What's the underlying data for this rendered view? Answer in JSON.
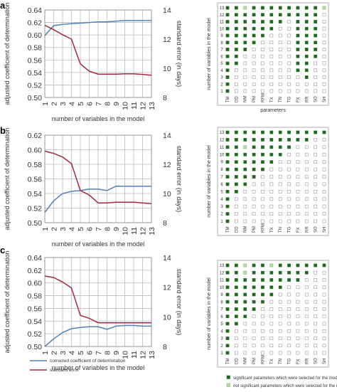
{
  "chart_data": [
    {
      "type": "line",
      "panel": "a",
      "x": [
        1,
        2,
        3,
        4,
        5,
        6,
        7,
        8,
        9,
        10,
        11,
        12,
        13
      ],
      "xlabel": "number of variables in the model",
      "ylabel": "adjusted coefficient of determination",
      "y2label": "standard error (in days)",
      "ylim": [
        0.5,
        0.64
      ],
      "y2lim": [
        8,
        14
      ],
      "series": [
        {
          "name": "corrected coefficient of determination",
          "axis": "left",
          "color": "#4f81bd",
          "values": [
            0.599,
            0.615,
            0.617,
            0.618,
            0.619,
            0.62,
            0.621,
            0.621,
            0.622,
            0.623,
            0.623,
            0.623,
            0.623
          ]
        },
        {
          "name": "standard error",
          "axis": "right",
          "color": "#a4283f",
          "values": [
            12.95,
            12.65,
            12.3,
            12.0,
            10.3,
            9.8,
            9.6,
            9.6,
            9.6,
            9.62,
            9.62,
            9.58,
            9.52
          ]
        }
      ],
      "grid": true
    },
    {
      "type": "line",
      "panel": "b",
      "x": [
        1,
        2,
        3,
        4,
        5,
        6,
        7,
        8,
        9,
        10,
        11,
        12,
        13
      ],
      "xlabel": "number of variables in the model",
      "ylabel": "adjusted coefficient of determination",
      "y2label": "standard error (in days)",
      "ylim": [
        0.5,
        0.62
      ],
      "y2lim": [
        8,
        14
      ],
      "series": [
        {
          "name": "corrected coefficient of determination",
          "axis": "left",
          "color": "#4f81bd",
          "values": [
            0.514,
            0.53,
            0.54,
            0.543,
            0.544,
            0.546,
            0.546,
            0.544,
            0.55,
            0.55,
            0.55,
            0.55,
            0.55
          ]
        },
        {
          "name": "standard error",
          "axis": "right",
          "color": "#a4283f",
          "values": [
            12.9,
            12.75,
            12.5,
            12.05,
            10.2,
            9.9,
            9.35,
            9.35,
            9.4,
            9.4,
            9.4,
            9.35,
            9.3
          ]
        }
      ],
      "grid": true
    },
    {
      "type": "line",
      "panel": "c",
      "x": [
        1,
        2,
        3,
        4,
        5,
        6,
        7,
        8,
        9,
        10,
        11,
        12,
        13
      ],
      "xlabel": "number of variables in the model",
      "ylabel": "adjusted coefficient of determination",
      "y2label": "standard error (in days)",
      "ylim": [
        0.5,
        0.64
      ],
      "y2lim": [
        8,
        14
      ],
      "series": [
        {
          "name": "corrected coefficient of determination",
          "axis": "left",
          "color": "#4f81bd",
          "values": [
            0.5,
            0.512,
            0.522,
            0.528,
            0.53,
            0.531,
            0.531,
            0.527,
            0.532,
            0.533,
            0.533,
            0.532,
            0.532
          ]
        },
        {
          "name": "standard error",
          "axis": "right",
          "color": "#a4283f",
          "values": [
            12.75,
            12.65,
            12.35,
            11.95,
            10.1,
            9.9,
            9.6,
            9.6,
            9.6,
            9.6,
            9.6,
            9.6,
            9.6
          ]
        }
      ],
      "grid": true
    },
    {
      "type": "heatmap",
      "panel": "a-grid",
      "xlabel": "parameters",
      "ylabel": "number of variables in the model",
      "x": [
        "TM",
        "DD",
        "NM",
        "PM",
        "RFM",
        "TX",
        "TN",
        "TG",
        "FX",
        "RR",
        "SO",
        "SH"
      ],
      "y": [
        1,
        2,
        3,
        4,
        5,
        6,
        7,
        8,
        9,
        10,
        11,
        12,
        13
      ],
      "legend": {
        "1": "significant parameters which were selected for the model",
        "2": "not significant parameters which were selected for the model"
      },
      "rows": [
        [
          1,
          0,
          0,
          0,
          0,
          0,
          0,
          0,
          0,
          0,
          0,
          0
        ],
        [
          1,
          0,
          0,
          0,
          0,
          0,
          0,
          0,
          0,
          0,
          0,
          0
        ],
        [
          1,
          0,
          0,
          0,
          0,
          0,
          0,
          0,
          0,
          1,
          0,
          0
        ],
        [
          1,
          0,
          0,
          0,
          0,
          0,
          0,
          0,
          1,
          1,
          0,
          0
        ],
        [
          1,
          1,
          0,
          0,
          0,
          0,
          0,
          0,
          1,
          1,
          0,
          0
        ],
        [
          1,
          1,
          0,
          0,
          0,
          0,
          0,
          0,
          1,
          1,
          1,
          0
        ],
        [
          1,
          1,
          1,
          0,
          0,
          0,
          0,
          0,
          1,
          1,
          1,
          0
        ],
        [
          1,
          1,
          1,
          1,
          0,
          0,
          0,
          0,
          1,
          1,
          1,
          0
        ],
        [
          1,
          1,
          1,
          1,
          1,
          0,
          0,
          0,
          1,
          1,
          1,
          0
        ],
        [
          1,
          1,
          1,
          1,
          1,
          1,
          0,
          0,
          1,
          1,
          1,
          0
        ],
        [
          1,
          1,
          1,
          1,
          1,
          1,
          1,
          0,
          1,
          1,
          1,
          0
        ],
        [
          1,
          1,
          1,
          1,
          1,
          1,
          1,
          1,
          1,
          1,
          1,
          0
        ],
        [
          1,
          1,
          2,
          1,
          1,
          1,
          1,
          1,
          1,
          1,
          1,
          2
        ]
      ]
    },
    {
      "type": "heatmap",
      "panel": "b-grid",
      "ylabel": "number of variables in the model",
      "x": [
        "TM",
        "DD",
        "NM",
        "PM",
        "RFM",
        "TX",
        "TN",
        "TG",
        "FX",
        "RR",
        "SO",
        "SH"
      ],
      "y": [
        1,
        2,
        3,
        4,
        5,
        6,
        7,
        8,
        9,
        10,
        11,
        12,
        13
      ],
      "rows": [
        [
          1,
          0,
          0,
          0,
          0,
          0,
          0,
          0,
          0,
          0,
          0,
          0
        ],
        [
          1,
          0,
          0,
          0,
          0,
          0,
          0,
          0,
          0,
          0,
          0,
          0
        ],
        [
          1,
          0,
          0,
          0,
          0,
          0,
          0,
          0,
          0,
          0,
          0,
          0
        ],
        [
          1,
          0,
          0,
          0,
          0,
          0,
          0,
          0,
          0,
          0,
          0,
          0
        ],
        [
          1,
          1,
          0,
          0,
          0,
          0,
          0,
          0,
          0,
          0,
          0,
          0
        ],
        [
          1,
          1,
          1,
          0,
          0,
          0,
          0,
          0,
          0,
          0,
          0,
          0
        ],
        [
          1,
          1,
          1,
          1,
          0,
          0,
          0,
          0,
          0,
          0,
          0,
          0
        ],
        [
          1,
          1,
          1,
          1,
          1,
          0,
          0,
          0,
          0,
          0,
          0,
          0
        ],
        [
          1,
          1,
          1,
          1,
          1,
          1,
          0,
          0,
          0,
          0,
          0,
          0
        ],
        [
          1,
          1,
          1,
          1,
          1,
          1,
          1,
          0,
          0,
          0,
          0,
          0
        ],
        [
          1,
          1,
          2,
          1,
          1,
          1,
          1,
          1,
          0,
          0,
          0,
          0
        ],
        [
          1,
          1,
          1,
          1,
          1,
          1,
          1,
          1,
          1,
          1,
          0,
          0
        ],
        [
          1,
          1,
          1,
          1,
          1,
          1,
          1,
          1,
          1,
          1,
          1,
          1
        ]
      ]
    },
    {
      "type": "heatmap",
      "panel": "c-grid",
      "ylabel": "number of variables in the model",
      "x": [
        "TM",
        "DD",
        "NM",
        "PM",
        "RFM",
        "TX",
        "TN",
        "TG",
        "FX",
        "RR",
        "SO",
        "SH"
      ],
      "y": [
        1,
        2,
        3,
        4,
        5,
        6,
        7,
        8,
        9,
        10,
        11,
        12,
        13
      ],
      "rows": [
        [
          1,
          0,
          0,
          0,
          0,
          0,
          0,
          0,
          0,
          0,
          0,
          0
        ],
        [
          1,
          0,
          0,
          0,
          0,
          0,
          0,
          0,
          0,
          0,
          0,
          0
        ],
        [
          1,
          0,
          0,
          0,
          0,
          0,
          0,
          0,
          0,
          0,
          0,
          0
        ],
        [
          1,
          0,
          0,
          0,
          0,
          0,
          0,
          0,
          0,
          0,
          0,
          0
        ],
        [
          1,
          1,
          0,
          0,
          0,
          0,
          0,
          0,
          0,
          0,
          0,
          0
        ],
        [
          1,
          1,
          1,
          0,
          0,
          0,
          0,
          0,
          0,
          0,
          0,
          0
        ],
        [
          1,
          1,
          1,
          1,
          0,
          0,
          0,
          0,
          0,
          0,
          0,
          0
        ],
        [
          1,
          1,
          1,
          1,
          1,
          0,
          0,
          0,
          0,
          0,
          0,
          0
        ],
        [
          1,
          1,
          1,
          1,
          1,
          1,
          0,
          0,
          0,
          0,
          0,
          0
        ],
        [
          1,
          1,
          1,
          1,
          1,
          1,
          1,
          0,
          0,
          0,
          0,
          0
        ],
        [
          1,
          1,
          1,
          1,
          1,
          1,
          1,
          1,
          1,
          0,
          0,
          0
        ],
        [
          1,
          1,
          2,
          1,
          1,
          1,
          1,
          1,
          1,
          1,
          0,
          0
        ],
        [
          1,
          1,
          2,
          1,
          1,
          2,
          1,
          1,
          1,
          1,
          1,
          1
        ]
      ]
    }
  ],
  "panel_letters": [
    "a",
    "b",
    "c"
  ],
  "legend": {
    "line1": "corrected coefficient of determination",
    "line2": "standard error",
    "sq1": "significant parameters which were selected for the model",
    "sq2": "not significant parameters which were selected for the model"
  },
  "colors": {
    "blue": "#4f81bd",
    "red": "#a4283f",
    "dark_green": "#1e6b1e",
    "light_green": "#b8dfa8",
    "grid": "#bbbbbb"
  }
}
